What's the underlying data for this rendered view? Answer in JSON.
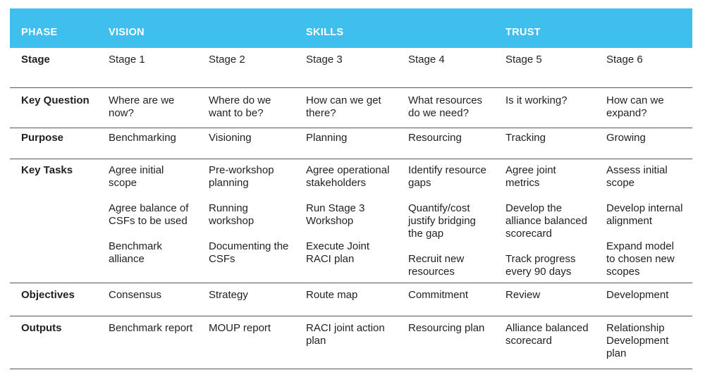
{
  "header": {
    "phase": "PHASE",
    "vision": "VISION",
    "skills": "SKILLS",
    "trust": "TRUST"
  },
  "rows": [
    {
      "label": "Stage",
      "cells": [
        [
          "Stage 1"
        ],
        [
          "Stage 2"
        ],
        [
          "Stage 3"
        ],
        [
          "Stage 4"
        ],
        [
          "Stage 5"
        ],
        [
          "Stage 6"
        ]
      ]
    },
    {
      "label": "Key Question",
      "cells": [
        [
          "Where are we\nnow?"
        ],
        [
          "Where do we\nwant to be?"
        ],
        [
          "How can we get\nthere?"
        ],
        [
          "What resources\ndo we need?"
        ],
        [
          "Is it working?"
        ],
        [
          "How can we\nexpand?"
        ]
      ]
    },
    {
      "label": "Purpose",
      "cells": [
        [
          "Benchmarking"
        ],
        [
          "Visioning"
        ],
        [
          "Planning"
        ],
        [
          "Resourcing"
        ],
        [
          "Tracking"
        ],
        [
          "Growing"
        ]
      ]
    },
    {
      "label": "Key Tasks",
      "cells": [
        [
          "Agree initial\nscope",
          "Agree balance of\nCSFs to be used",
          "Benchmark\nalliance"
        ],
        [
          "Pre-workshop\nplanning",
          "Running\nworkshop",
          "Documenting the\nCSFs"
        ],
        [
          "Agree operational\nstakeholders",
          "Run Stage 3\nWorkshop",
          "Execute Joint\nRACI plan"
        ],
        [
          "Identify resource\ngaps",
          "Quantify/cost\njustify bridging\nthe gap",
          "Recruit new\nresources"
        ],
        [
          "Agree joint\nmetrics",
          "Develop the\nalliance balanced\nscorecard",
          "Track progress\nevery 90 days"
        ],
        [
          "Assess initial\nscope",
          "Develop internal\nalignment",
          "Expand model\nto chosen new\nscopes"
        ]
      ]
    },
    {
      "label": "Objectives",
      "cells": [
        [
          "Consensus"
        ],
        [
          "Strategy"
        ],
        [
          "Route map"
        ],
        [
          "Commitment"
        ],
        [
          "Review"
        ],
        [
          "Development"
        ]
      ]
    },
    {
      "label": "Outputs",
      "cells": [
        [
          "Benchmark report"
        ],
        [
          "MOUP report"
        ],
        [
          "RACI joint action\nplan"
        ],
        [
          "Resourcing plan"
        ],
        [
          "Alliance balanced\nscorecard"
        ],
        [
          "Relationship\nDevelopment\nplan"
        ]
      ]
    }
  ]
}
